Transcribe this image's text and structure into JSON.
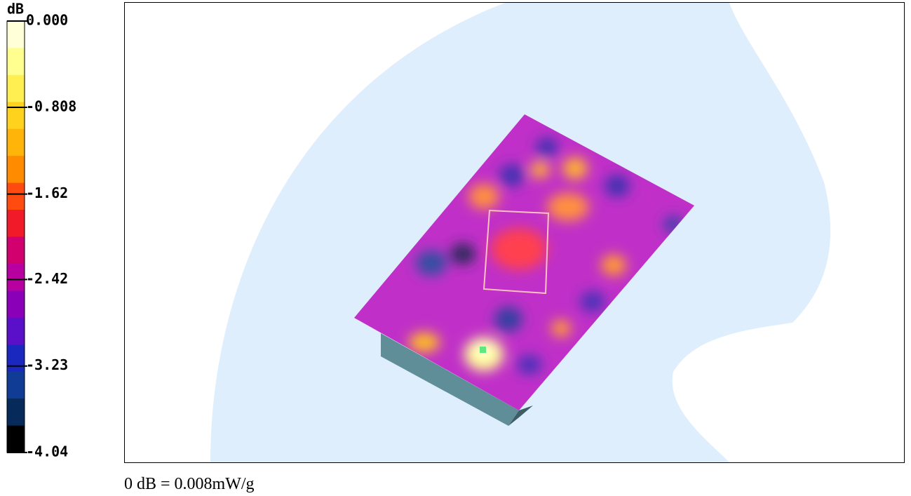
{
  "colorbar": {
    "unit": "dB",
    "range": [
      -4.04,
      0
    ],
    "ticks": [
      {
        "value": 0,
        "label": "0.000"
      },
      -0.808,
      -1.62,
      -2.42,
      -3.23,
      -4.04
    ],
    "colors": [
      "#ffffd8",
      "#ffff90",
      "#ffef50",
      "#ffd21e",
      "#ffb40a",
      "#ff8c00",
      "#ff4a10",
      "#f01a28",
      "#d2006e",
      "#b800a0",
      "#8a00b8",
      "#5a10c8",
      "#1a28c0",
      "#103c96",
      "#062a5a",
      "#000000"
    ]
  },
  "caption": "0 dB = 0.008mW/g"
}
